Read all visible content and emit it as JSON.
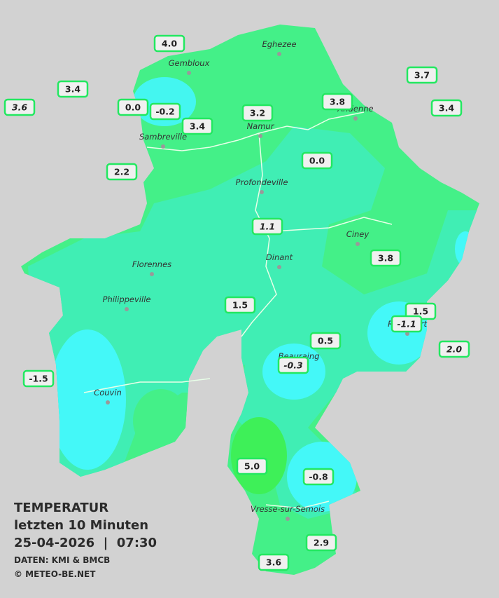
{
  "legend": {
    "title": "TEMPERATUR",
    "subtitle": "letzten 10 Minuten",
    "datetime": "25-04-2026  |  07:30",
    "source": "DATEN: KMI & BMCB",
    "copyright": "© METEO-BE.NET"
  },
  "cities": [
    "Eghezee",
    "Gembloux",
    "Andenne",
    "Namur",
    "Sambreville",
    "Profondeville",
    "Ciney",
    "Dinant",
    "Florennes",
    "Philippeville",
    "Rochefort",
    "Beauraing",
    "Couvin",
    "Vresse-sur-Semois"
  ],
  "stations": [
    {
      "label": "4.0",
      "italic": false
    },
    {
      "label": "3.4",
      "italic": false
    },
    {
      "label": "3.6",
      "italic": true
    },
    {
      "label": "0.0",
      "italic": false
    },
    {
      "label": "-0.2",
      "italic": false
    },
    {
      "label": "3.4",
      "italic": false
    },
    {
      "label": "3.2",
      "italic": false
    },
    {
      "label": "3.8",
      "italic": false
    },
    {
      "label": "3.7",
      "italic": false
    },
    {
      "label": "3.4",
      "italic": false
    },
    {
      "label": "2.2",
      "italic": false
    },
    {
      "label": "0.0",
      "italic": false
    },
    {
      "label": "1.1",
      "italic": true
    },
    {
      "label": "3.8",
      "italic": false
    },
    {
      "label": "1.5",
      "italic": false
    },
    {
      "label": "1.5",
      "italic": false
    },
    {
      "label": "-1.1",
      "italic": true
    },
    {
      "label": "0.5",
      "italic": false
    },
    {
      "label": "2.0",
      "italic": true
    },
    {
      "label": "-0.3",
      "italic": true
    },
    {
      "label": "-1.5",
      "italic": false
    },
    {
      "label": "5.0",
      "italic": false
    },
    {
      "label": "-0.8",
      "italic": false
    },
    {
      "label": "2.9",
      "italic": false
    },
    {
      "label": "3.6",
      "italic": false
    }
  ]
}
